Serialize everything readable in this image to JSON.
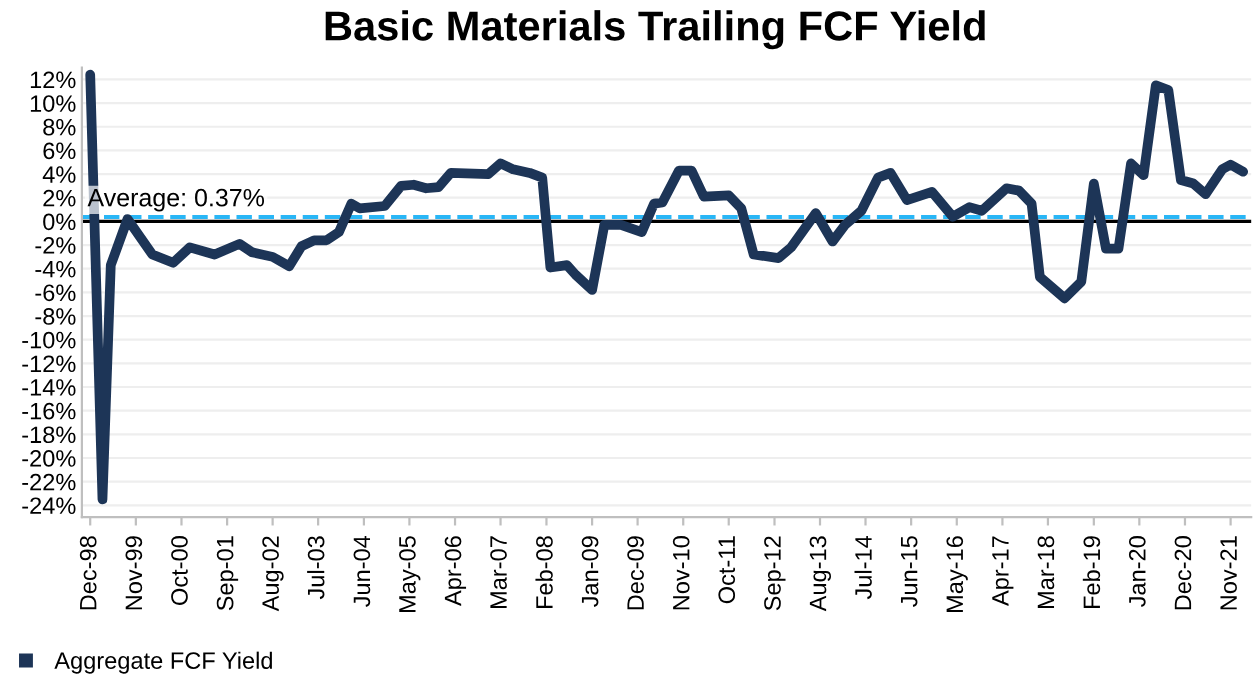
{
  "chart_data": {
    "type": "line",
    "title": "Basic Materials Trailing FCF Yield",
    "x": [
      "1998-12",
      "1999-03",
      "1999-05",
      "1999-09",
      "2000-03",
      "2000-08",
      "2000-12",
      "2001-06",
      "2001-12",
      "2002-03",
      "2002-08",
      "2002-12",
      "2003-03",
      "2003-06",
      "2003-09",
      "2003-12",
      "2004-03",
      "2004-05",
      "2004-11",
      "2005-03",
      "2005-06",
      "2005-09",
      "2005-12",
      "2006-03",
      "2006-12",
      "2007-03",
      "2007-06",
      "2007-10",
      "2008-01",
      "2008-03",
      "2008-07",
      "2008-09",
      "2009-01",
      "2009-04",
      "2009-08",
      "2010-01",
      "2010-04",
      "2010-06",
      "2010-10",
      "2011-01",
      "2011-04",
      "2011-10",
      "2012-01",
      "2012-04",
      "2012-10",
      "2013-01",
      "2013-07",
      "2013-11",
      "2014-02",
      "2014-06",
      "2014-10",
      "2015-01",
      "2015-05",
      "2015-11",
      "2016-04",
      "2016-08",
      "2016-11",
      "2017-05",
      "2017-08",
      "2017-11",
      "2018-01",
      "2018-07",
      "2018-11",
      "2019-02",
      "2019-05",
      "2019-08",
      "2019-11",
      "2020-02",
      "2020-05",
      "2020-08",
      "2020-11",
      "2021-02",
      "2021-05",
      "2021-09",
      "2021-11",
      "2022-02"
    ],
    "series": [
      {
        "name": "Aggregate FCF Yield",
        "color": "#1d3557",
        "values": [
          12.4,
          -23.5,
          -3.7,
          0.2,
          -2.8,
          -3.5,
          -2.2,
          -2.8,
          -1.9,
          -2.6,
          -3.0,
          -3.8,
          -2.1,
          -1.6,
          -1.6,
          -0.9,
          1.5,
          1.1,
          1.3,
          3.0,
          3.1,
          2.8,
          2.9,
          4.1,
          4.0,
          4.9,
          4.4,
          4.1,
          3.7,
          -3.9,
          -3.7,
          -4.5,
          -5.8,
          -0.3,
          -0.3,
          -0.9,
          1.5,
          1.6,
          4.3,
          4.3,
          2.1,
          2.2,
          1.1,
          -2.8,
          -3.1,
          -2.2,
          0.7,
          -1.7,
          -0.3,
          0.9,
          3.7,
          4.1,
          1.8,
          2.5,
          0.4,
          1.2,
          0.9,
          2.8,
          2.6,
          1.5,
          -4.7,
          -6.5,
          -5.1,
          3.2,
          -2.3,
          -2.3,
          4.9,
          3.9,
          11.5,
          11.1,
          3.5,
          3.2,
          2.3,
          4.4,
          4.8,
          4.2
        ]
      }
    ],
    "xlim": [
      "1998-10",
      "2022-04"
    ],
    "xticks": [
      {
        "value": "1998-12",
        "label": "Dec-98"
      },
      {
        "value": "1999-11",
        "label": "Nov-99"
      },
      {
        "value": "2000-10",
        "label": "Oct-00"
      },
      {
        "value": "2001-09",
        "label": "Sep-01"
      },
      {
        "value": "2002-08",
        "label": "Aug-02"
      },
      {
        "value": "2003-07",
        "label": "Jul-03"
      },
      {
        "value": "2004-06",
        "label": "Jun-04"
      },
      {
        "value": "2005-05",
        "label": "May-05"
      },
      {
        "value": "2006-04",
        "label": "Apr-06"
      },
      {
        "value": "2007-03",
        "label": "Mar-07"
      },
      {
        "value": "2008-02",
        "label": "Feb-08"
      },
      {
        "value": "2009-01",
        "label": "Jan-09"
      },
      {
        "value": "2009-12",
        "label": "Dec-09"
      },
      {
        "value": "2010-11",
        "label": "Nov-10"
      },
      {
        "value": "2011-10",
        "label": "Oct-11"
      },
      {
        "value": "2012-09",
        "label": "Sep-12"
      },
      {
        "value": "2013-08",
        "label": "Aug-13"
      },
      {
        "value": "2014-07",
        "label": "Jul-14"
      },
      {
        "value": "2015-06",
        "label": "Jun-15"
      },
      {
        "value": "2016-05",
        "label": "May-16"
      },
      {
        "value": "2017-04",
        "label": "Apr-17"
      },
      {
        "value": "2018-03",
        "label": "Mar-18"
      },
      {
        "value": "2019-02",
        "label": "Feb-19"
      },
      {
        "value": "2020-01",
        "label": "Jan-20"
      },
      {
        "value": "2020-12",
        "label": "Dec-20"
      },
      {
        "value": "2021-11",
        "label": "Nov-21"
      }
    ],
    "ylim": [
      -25,
      13
    ],
    "yticks": [
      {
        "value": 12,
        "label": "12%"
      },
      {
        "value": 10,
        "label": "10%"
      },
      {
        "value": 8,
        "label": "8%"
      },
      {
        "value": 6,
        "label": "6%"
      },
      {
        "value": 4,
        "label": "4%"
      },
      {
        "value": 2,
        "label": "2%"
      },
      {
        "value": 0,
        "label": "0%"
      },
      {
        "value": -2,
        "label": "-2%"
      },
      {
        "value": -4,
        "label": "-4%"
      },
      {
        "value": -6,
        "label": "-6%"
      },
      {
        "value": -8,
        "label": "-8%"
      },
      {
        "value": -10,
        "label": "-10%"
      },
      {
        "value": -12,
        "label": "-12%"
      },
      {
        "value": -14,
        "label": "-14%"
      },
      {
        "value": -16,
        "label": "-16%"
      },
      {
        "value": -18,
        "label": "-18%"
      },
      {
        "value": -20,
        "label": "-20%"
      },
      {
        "value": -22,
        "label": "-22%"
      },
      {
        "value": -24,
        "label": "-24%"
      }
    ],
    "ref_lines": [
      {
        "axis": "y",
        "value": 0.37,
        "label": "Average: 0.37%",
        "color": "#29b6f6",
        "line_style": "dashed"
      },
      {
        "axis": "y",
        "value": 0,
        "color": "#000000",
        "line_style": "solid"
      }
    ],
    "grid": "y",
    "legend": "bottom left",
    "marker": "none",
    "line_style": "solid"
  }
}
